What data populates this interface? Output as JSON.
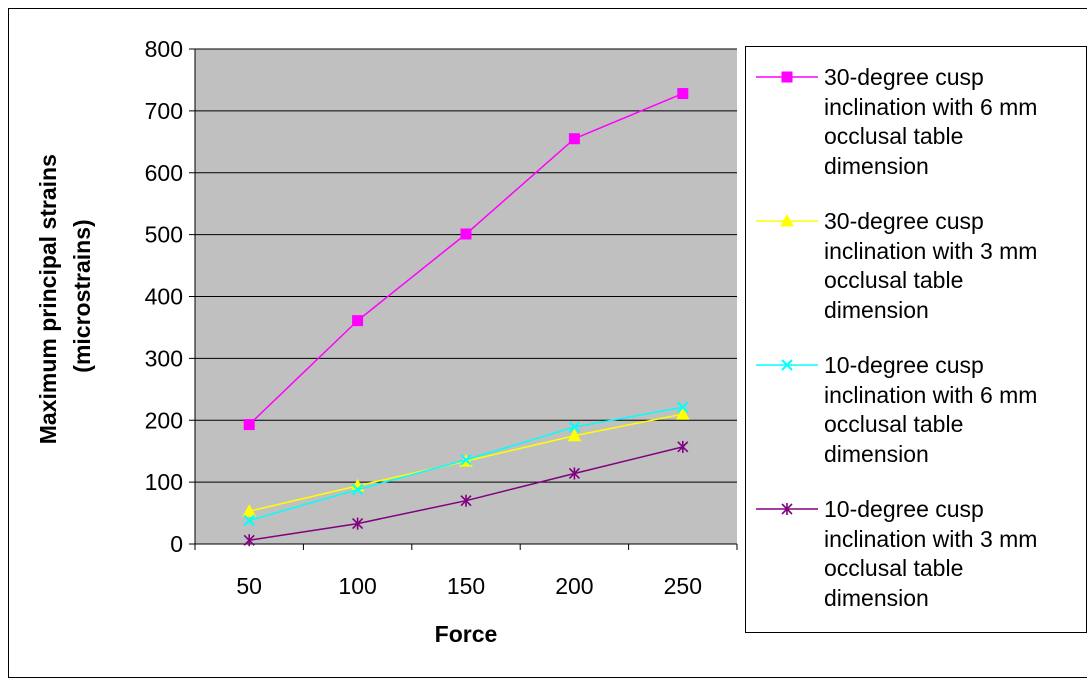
{
  "chart_data": {
    "type": "line",
    "categories": [
      "50",
      "100",
      "150",
      "200",
      "250"
    ],
    "xlabel": "Force",
    "ylabel_lines": [
      "Maximum principal strains",
      "(microstrains)"
    ],
    "ylim": [
      0,
      800
    ],
    "yticks": [
      "0",
      "100",
      "200",
      "300",
      "400",
      "500",
      "600",
      "700",
      "800"
    ],
    "grid": true,
    "plot_background": "#c0c0c0",
    "legend_position": "right",
    "series": [
      {
        "name": "30-degree cusp inclination with 6 mm occlusal table dimension",
        "name_lines": [
          "30-degree cusp",
          "inclination with 6 mm",
          "occlusal table",
          "dimension"
        ],
        "values": [
          193,
          361,
          501,
          655,
          728
        ],
        "color": "#ff00ff",
        "marker": "square"
      },
      {
        "name": "30-degree cusp inclination with 3 mm occlusal table dimension",
        "name_lines": [
          "30-degree cusp",
          "inclination with 3 mm",
          "occlusal table",
          "dimension"
        ],
        "values": [
          53,
          94,
          134,
          175,
          210
        ],
        "color": "#ffff00",
        "marker": "triangle"
      },
      {
        "name": "10-degree cusp inclination with 6 mm occlusal table dimension",
        "name_lines": [
          "10-degree cusp",
          "inclination with 6 mm",
          "occlusal table",
          "dimension"
        ],
        "values": [
          38,
          88,
          136,
          189,
          221
        ],
        "color": "#00ffff",
        "marker": "x"
      },
      {
        "name": "10-degree cusp inclination with 3 mm occlusal table dimension",
        "name_lines": [
          "10-degree cusp",
          "inclination with 3 mm",
          "occlusal table",
          "dimension"
        ],
        "values": [
          6,
          33,
          70,
          114,
          157
        ],
        "color": "#800080",
        "marker": "star"
      }
    ]
  }
}
